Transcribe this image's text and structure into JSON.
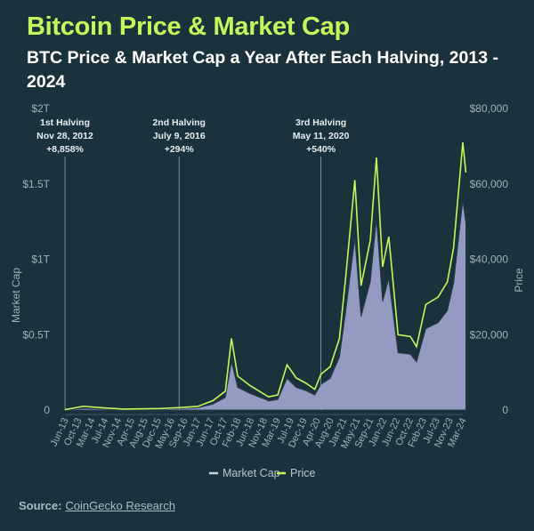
{
  "title": "Bitcoin Price & Market Cap",
  "subtitle": "BTC Price & Market Cap a Year After Each Halving, 2013 - 2024",
  "source_label": "Source:",
  "source_link": "CoinGecko Research",
  "colors": {
    "background": "#1b323c",
    "title": "#c6f55c",
    "price": "#c6f55c",
    "market_cap": "#a9aed9"
  },
  "chart_data": {
    "type": "area",
    "ylabel": "Market Cap",
    "y2label": "Price",
    "ylim": [
      0,
      2000000000000
    ],
    "y2lim": [
      0,
      80000
    ],
    "y_ticks": [
      "0",
      "$0.5T",
      "$1T",
      "$1.5T",
      "$2T"
    ],
    "y2_ticks": [
      "0",
      "$20,000",
      "$40,000",
      "$60,000",
      "$80,000"
    ],
    "x_ticks": [
      "Jun-13",
      "Oct-13",
      "Mar-14",
      "Jul-14",
      "Nov-14",
      "Apr-15",
      "Aug-15",
      "Dec-15",
      "May-16",
      "Sep-16",
      "Jan-17",
      "Jun-17",
      "Oct-17",
      "Feb-18",
      "Jun-18",
      "Nov-18",
      "Mar-19",
      "Jul-19",
      "Dec-19",
      "Apr-20",
      "Aug-20",
      "Jan-21",
      "May-21",
      "Sep-21",
      "Jan-22",
      "Jun-22",
      "Oct-22",
      "Feb-23",
      "Jul-23",
      "Nov-23",
      "Mar-24"
    ],
    "legend": [
      "Market Cap",
      "Price"
    ],
    "legend_position": "bottom",
    "annotations": [
      {
        "label": "1st Halving",
        "date": "Nov 28, 2012",
        "change": "+8,858%",
        "x": "2013-06"
      },
      {
        "label": "2nd Halving",
        "date": "July 9, 2016",
        "change": "+294%",
        "x": "2016-07"
      },
      {
        "label": "3rd Halving",
        "date": "May 11, 2020",
        "change": "+540%",
        "x": "2020-05"
      }
    ],
    "series": [
      {
        "name": "Price",
        "x": [
          "2013-06",
          "2013-12",
          "2014-06",
          "2015-01",
          "2016-01",
          "2016-07",
          "2017-01",
          "2017-06",
          "2017-10",
          "2017-12",
          "2018-02",
          "2018-06",
          "2018-11",
          "2018-12",
          "2019-03",
          "2019-06",
          "2019-09",
          "2019-12",
          "2020-03",
          "2020-05",
          "2020-08",
          "2020-11",
          "2021-01",
          "2021-04",
          "2021-06",
          "2021-09",
          "2021-11",
          "2022-01",
          "2022-03",
          "2022-06",
          "2022-10",
          "2022-12",
          "2023-03",
          "2023-07",
          "2023-10",
          "2023-12",
          "2024-03",
          "2024-04"
        ],
        "values": [
          100,
          1000,
          600,
          250,
          400,
          650,
          950,
          2500,
          5000,
          19000,
          9000,
          6500,
          4000,
          3500,
          4000,
          12000,
          8500,
          7200,
          5500,
          9500,
          11500,
          19000,
          35000,
          61000,
          33000,
          45000,
          67000,
          38000,
          46000,
          20000,
          19500,
          16800,
          28000,
          30000,
          34000,
          43000,
          71000,
          63000
        ]
      },
      {
        "name": "Market Cap",
        "x": [
          "2013-06",
          "2013-12",
          "2014-06",
          "2015-01",
          "2016-01",
          "2016-07",
          "2017-01",
          "2017-06",
          "2017-10",
          "2017-12",
          "2018-02",
          "2018-06",
          "2018-11",
          "2018-12",
          "2019-03",
          "2019-06",
          "2019-09",
          "2019-12",
          "2020-03",
          "2020-05",
          "2020-08",
          "2020-11",
          "2021-01",
          "2021-04",
          "2021-06",
          "2021-09",
          "2021-11",
          "2022-01",
          "2022-03",
          "2022-06",
          "2022-10",
          "2022-12",
          "2023-03",
          "2023-07",
          "2023-10",
          "2023-12",
          "2024-03",
          "2024-04"
        ],
        "values": [
          1100000000.0,
          12000000000.0,
          7500000000.0,
          3400000000.0,
          6000000000.0,
          10000000000.0,
          15000000000.0,
          40000000000.0,
          83000000000.0,
          320000000000.0,
          150000000000.0,
          110000000000.0,
          70000000000.0,
          60000000000.0,
          70000000000.0,
          210000000000.0,
          150000000000.0,
          130000000000.0,
          100000000000.0,
          170000000000.0,
          210000000000.0,
          350000000000.0,
          650000000000.0,
          1140000000000.0,
          620000000000.0,
          850000000000.0,
          1270000000000.0,
          720000000000.0,
          870000000000.0,
          380000000000.0,
          370000000000.0,
          320000000000.0,
          540000000000.0,
          580000000000.0,
          660000000000.0,
          840000000000.0,
          1390000000000.0,
          1240000000000.0
        ]
      }
    ]
  }
}
